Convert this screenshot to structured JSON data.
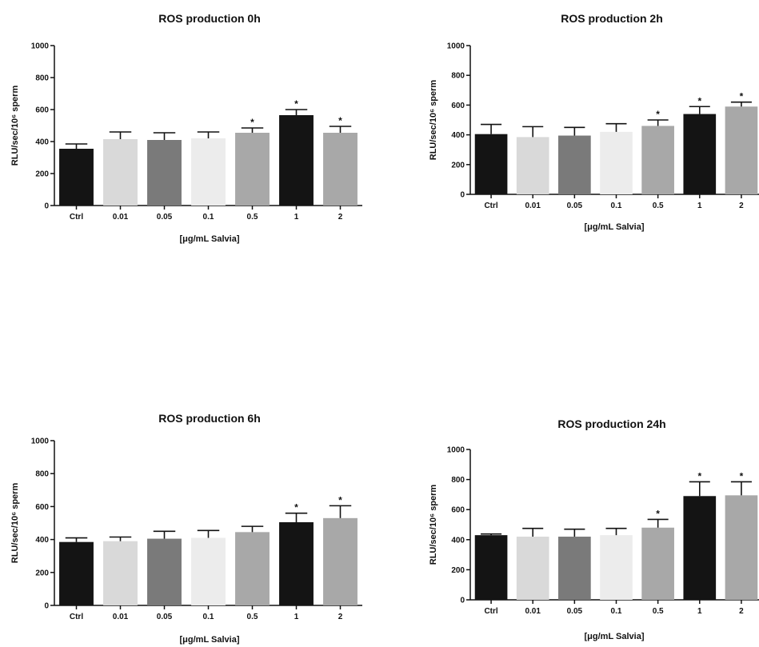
{
  "chart_data": [
    {
      "type": "bar",
      "title": "ROS production 0h",
      "xlabel": "[μg/mL Salvia]",
      "ylabel": "RLU/sec/10⁶ sperm",
      "ylim": [
        0,
        1000
      ],
      "yticks": [
        0,
        200,
        400,
        600,
        800,
        1000
      ],
      "categories": [
        "Ctrl",
        "0.01",
        "0.05",
        "0.1",
        "0.5",
        "1",
        "2"
      ],
      "values": [
        355,
        415,
        410,
        420,
        455,
        565,
        455
      ],
      "errors": [
        30,
        45,
        45,
        40,
        30,
        35,
        40
      ],
      "significant": [
        false,
        false,
        false,
        false,
        true,
        true,
        true
      ],
      "significance_marker": "*",
      "colors": [
        "#141414",
        "#d9d9d9",
        "#7a7a7a",
        "#ececec",
        "#a8a8a8",
        "#141414",
        "#a8a8a8"
      ]
    },
    {
      "type": "bar",
      "title": "ROS production 2h",
      "xlabel": "[μg/mL Salvia]",
      "ylabel": "RLU/sec/10⁶ sperm",
      "ylim": [
        0,
        1000
      ],
      "yticks": [
        0,
        200,
        400,
        600,
        800,
        1000
      ],
      "categories": [
        "Ctrl",
        "0.01",
        "0.05",
        "0.1",
        "0.5",
        "1",
        "2"
      ],
      "values": [
        405,
        385,
        395,
        420,
        460,
        540,
        590
      ],
      "errors": [
        65,
        70,
        55,
        55,
        40,
        50,
        30
      ],
      "significant": [
        false,
        false,
        false,
        false,
        true,
        true,
        true
      ],
      "significance_marker": "*",
      "colors": [
        "#141414",
        "#d9d9d9",
        "#7a7a7a",
        "#ececec",
        "#a8a8a8",
        "#141414",
        "#a8a8a8"
      ]
    },
    {
      "type": "bar",
      "title": "ROS production 6h",
      "xlabel": "[μg/mL Salvia]",
      "ylabel": "RLU/sec/10⁶ sperm",
      "ylim": [
        0,
        1000
      ],
      "yticks": [
        0,
        200,
        400,
        600,
        800,
        1000
      ],
      "categories": [
        "Ctrl",
        "0.01",
        "0.05",
        "0.1",
        "0.5",
        "1",
        "2"
      ],
      "values": [
        385,
        390,
        405,
        410,
        445,
        505,
        530
      ],
      "errors": [
        25,
        25,
        45,
        45,
        35,
        55,
        75
      ],
      "significant": [
        false,
        false,
        false,
        false,
        false,
        true,
        true
      ],
      "significance_marker": "*",
      "colors": [
        "#141414",
        "#d9d9d9",
        "#7a7a7a",
        "#ececec",
        "#a8a8a8",
        "#141414",
        "#a8a8a8"
      ]
    },
    {
      "type": "bar",
      "title": "ROS production 24h",
      "xlabel": "[μg/mL Salvia]",
      "ylabel": "RLU/sec/10⁶ sperm",
      "ylim": [
        0,
        1000
      ],
      "yticks": [
        0,
        200,
        400,
        600,
        800,
        1000
      ],
      "categories": [
        "Ctrl",
        "0.01",
        "0.05",
        "0.1",
        "0.5",
        "1",
        "2"
      ],
      "values": [
        430,
        420,
        420,
        430,
        480,
        690,
        695
      ],
      "errors": [
        8,
        55,
        50,
        45,
        55,
        95,
        90
      ],
      "significant": [
        false,
        false,
        false,
        false,
        true,
        true,
        true
      ],
      "significance_marker": "*",
      "colors": [
        "#141414",
        "#d9d9d9",
        "#7a7a7a",
        "#ececec",
        "#a8a8a8",
        "#141414",
        "#a8a8a8"
      ]
    }
  ]
}
